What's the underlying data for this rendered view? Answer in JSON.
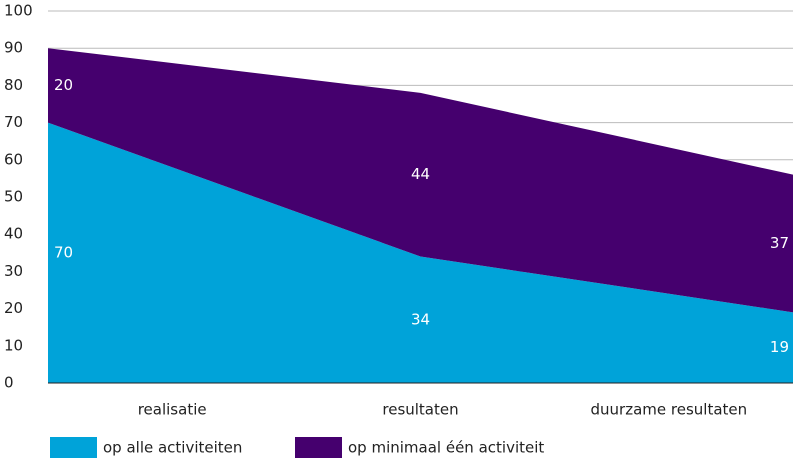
{
  "chart_data": {
    "type": "stacked_area",
    "categories": [
      "realisatie",
      "resultaten",
      "duurzame resultaten"
    ],
    "series": [
      {
        "name": "op alle activiteiten",
        "color": "#00a3d9",
        "values": [
          70,
          34,
          19
        ]
      },
      {
        "name": "op minimaal één activiteit",
        "color": "#45006e",
        "values": [
          20,
          44,
          37
        ]
      }
    ],
    "ylim": [
      0,
      100
    ],
    "yticks": [
      0,
      10,
      20,
      30,
      40,
      50,
      60,
      70,
      80,
      90,
      100
    ],
    "grid": true
  }
}
